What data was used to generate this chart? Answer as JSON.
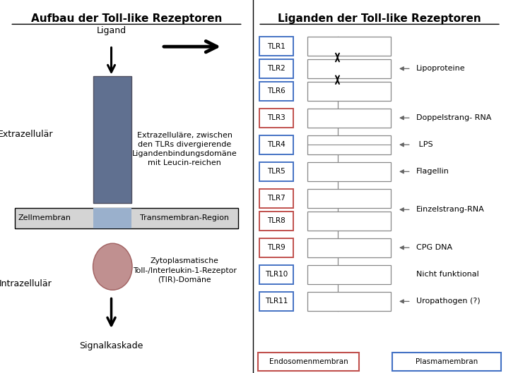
{
  "left_title": "Aufbau der Toll-like Rezeptoren",
  "right_title": "Liganden der Toll-like Rezeptoren",
  "left_labels": {
    "extrazellulaer": "Extrazellulär",
    "intrazellulaer": "Intrazellulär",
    "ligand": "Ligand",
    "signalkaskade": "Signalkaskade",
    "zellmembran": "Zellmembran",
    "transmembran": "Transmembran-Region",
    "extrazellulaere_desc": "Extrazelluläre, zwischen\nden TLRs divergierende\nLigandenbindungsdomäne\nmit Leucin-reichen",
    "zytoplasmatische_desc": "Zytoplasmatische\nToll-/Interleukin-1-Rezeptor\n(TIR)-Domäne"
  },
  "tlr_entries": [
    {
      "name": "TLR1",
      "color": "#4472C4",
      "row": 0,
      "group": "plasma"
    },
    {
      "name": "TLR2",
      "color": "#4472C4",
      "row": 1,
      "group": "plasma"
    },
    {
      "name": "TLR6",
      "color": "#4472C4",
      "row": 2,
      "group": "plasma"
    },
    {
      "name": "TLR3",
      "color": "#C0504D",
      "row": 3,
      "group": "endosome"
    },
    {
      "name": "TLR4",
      "color": "#4472C4",
      "row": 4,
      "group": "plasma"
    },
    {
      "name": "TLR5",
      "color": "#4472C4",
      "row": 5,
      "group": "plasma"
    },
    {
      "name": "TLR7",
      "color": "#C0504D",
      "row": 6,
      "group": "endosome"
    },
    {
      "name": "TLR8",
      "color": "#C0504D",
      "row": 7,
      "group": "endosome"
    },
    {
      "name": "TLR9",
      "color": "#C0504D",
      "row": 8,
      "group": "endosome"
    },
    {
      "name": "TLR10",
      "color": "#4472C4",
      "row": 9,
      "group": "plasma"
    },
    {
      "name": "TLR11",
      "color": "#4472C4",
      "row": 10,
      "group": "plasma"
    }
  ],
  "ligand_groups": [
    {
      "rows": [
        0,
        1,
        2
      ],
      "text": "Lipoproteine",
      "arrow": true
    },
    {
      "rows": [
        3
      ],
      "text": "Doppelstrang- RNA",
      "arrow": true
    },
    {
      "rows": [
        4
      ],
      "text": " LPS",
      "arrow": true
    },
    {
      "rows": [
        5
      ],
      "text": "Flagellin",
      "arrow": true
    },
    {
      "rows": [
        6,
        7
      ],
      "text": "Einzelstrang-RNA",
      "arrow": true
    },
    {
      "rows": [
        8
      ],
      "text": "CPG DNA",
      "arrow": true
    },
    {
      "rows": [
        9
      ],
      "text": "Nicht funktional",
      "arrow": false
    },
    {
      "rows": [
        10
      ],
      "text": "Uropathogen (?)",
      "arrow": true
    }
  ],
  "endosome_label": "Endosomenmembran",
  "plasma_label": "Plasmamembran",
  "endosome_color": "#C0504D",
  "plasma_color": "#4472C4",
  "receptor_color": "#607090",
  "transmem_color": "#9ab0cc",
  "membrane_color": "#d4d4d4",
  "tir_color_face": "#c09090",
  "tir_color_edge": "#a06060",
  "bg_color": "#ffffff"
}
